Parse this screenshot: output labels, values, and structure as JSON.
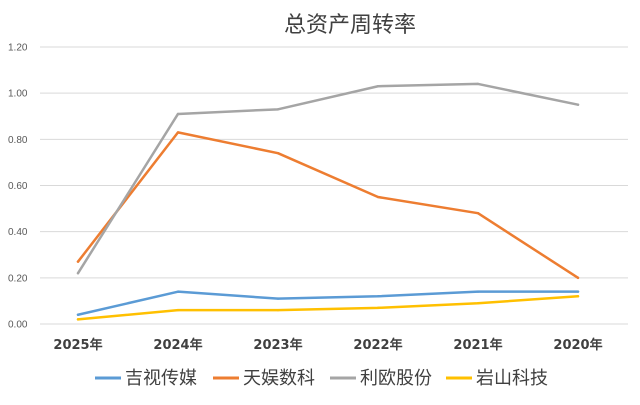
{
  "chart_data": {
    "type": "line",
    "title": "总资产周转率",
    "categories": [
      "2025年",
      "2024年",
      "2023年",
      "2022年",
      "2021年",
      "2020年"
    ],
    "ylim": [
      0,
      1.2
    ],
    "yticks": [
      "0.00",
      "0.20",
      "0.40",
      "0.60",
      "0.80",
      "1.00",
      "1.20"
    ],
    "grid": true,
    "legend_position": "bottom",
    "series": [
      {
        "name": "吉视传媒",
        "color": "#5b9bd5",
        "values": [
          0.04,
          0.14,
          0.11,
          0.12,
          0.14,
          0.14
        ]
      },
      {
        "name": "天娱数科",
        "color": "#ed7d31",
        "values": [
          0.27,
          0.83,
          0.74,
          0.55,
          0.48,
          0.2
        ]
      },
      {
        "name": "利欧股份",
        "color": "#a5a5a5",
        "values": [
          0.22,
          0.91,
          0.93,
          1.03,
          1.04,
          0.95
        ]
      },
      {
        "name": "岩山科技",
        "color": "#ffc000",
        "values": [
          0.02,
          0.06,
          0.06,
          0.07,
          0.09,
          0.12
        ]
      }
    ]
  }
}
